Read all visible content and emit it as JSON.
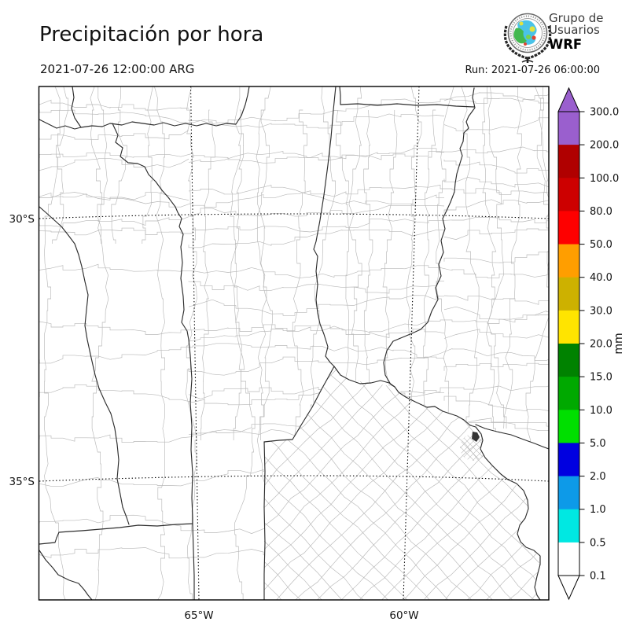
{
  "header": {
    "title": "Precipitación por hora",
    "valid_time": "2021-07-26 12:00:00 ARG",
    "run_label": "Run: 2021-07-26 06:00:00",
    "logo": {
      "line1": "Grupo de",
      "line2": "Usuarios",
      "line3": "WRF"
    }
  },
  "map": {
    "lat_labels": [
      "30°S",
      "35°S"
    ],
    "lon_labels": [
      "65°W",
      "60°W"
    ]
  },
  "colorbar": {
    "unit": "mm",
    "tick_labels": [
      "300.0",
      "200.0",
      "100.0",
      "80.0",
      "50.0",
      "40.0",
      "30.0",
      "20.0",
      "15.0",
      "10.0",
      "5.0",
      "2.0",
      "1.0",
      "0.5",
      "0.1"
    ],
    "segment_colors_top_to_bottom": [
      "#9a5fce",
      "#b00000",
      "#cd0000",
      "#fe0000",
      "#ff9e00",
      "#cdb100",
      "#ffe400",
      "#008200",
      "#00a900",
      "#00df00",
      "#0000e0",
      "#0d9ae8",
      "#00e8e2",
      "#ffffff"
    ],
    "over_color": "#9a5fce",
    "under_color": "#ffffff",
    "border_color": "#000000"
  }
}
